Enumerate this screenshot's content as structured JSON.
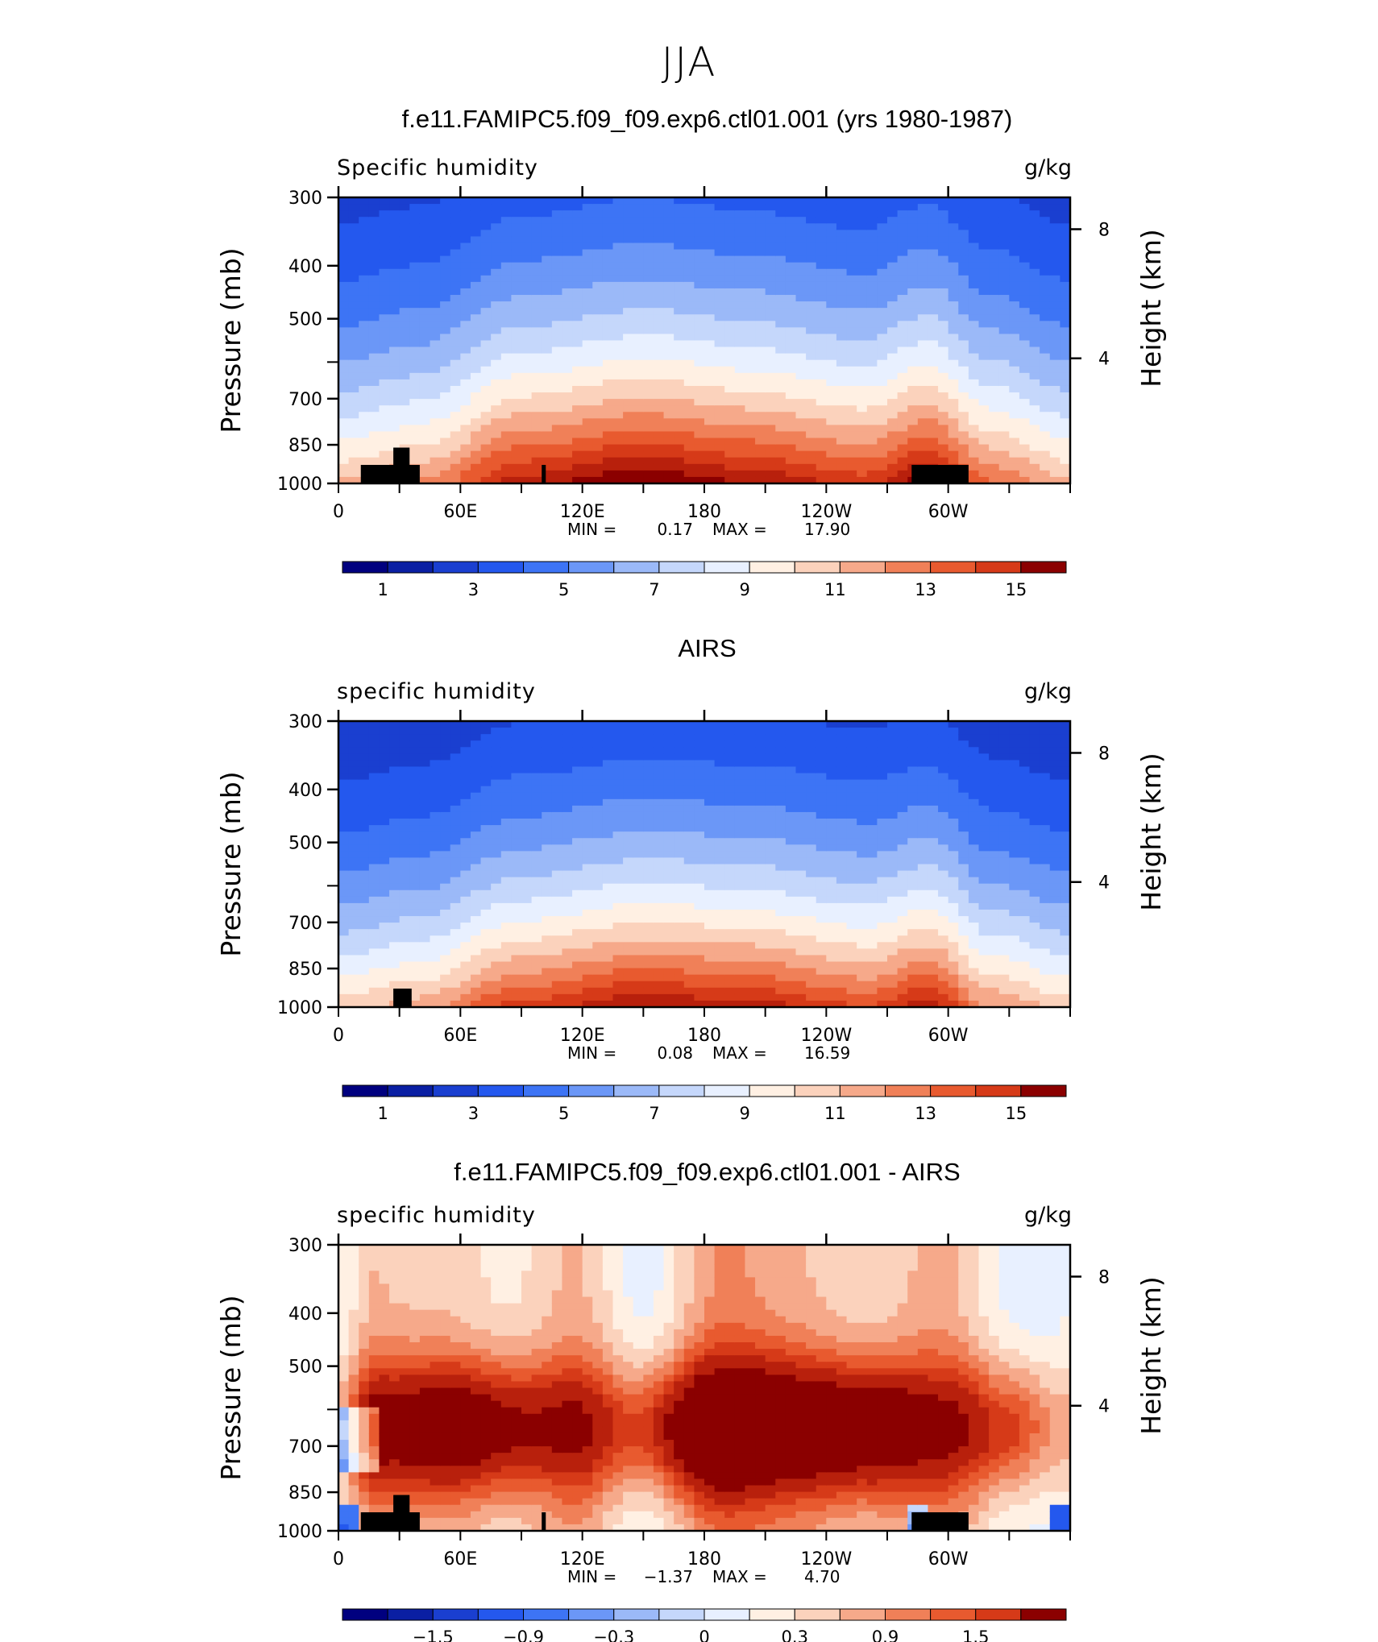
{
  "page_title": "JJA",
  "colors": {
    "humidity_scale": [
      "#00007f",
      "#0a1fa3",
      "#1a3fd0",
      "#2458ee",
      "#3d74f5",
      "#6b97f7",
      "#9bb9f8",
      "#c5d7fb",
      "#e8f0ff",
      "#fff0e3",
      "#fbd2bc",
      "#f6a98a",
      "#f08058",
      "#e85a2f",
      "#d63a18",
      "#b8200c",
      "#8b0000"
    ],
    "difference_scale": [
      "#00007f",
      "#0a1fa3",
      "#1a3fd0",
      "#2458ee",
      "#3d74f5",
      "#6b97f7",
      "#9bb9f8",
      "#c5d7fb",
      "#e8f0ff",
      "#fff0e3",
      "#fbd2bc",
      "#f6a98a",
      "#f08058",
      "#e85a2f",
      "#d63a18",
      "#b8200c",
      "#8b0000"
    ],
    "terrain": "#000000"
  },
  "chart_data": [
    {
      "type": "contour",
      "title": "f.e11.FAMIPC5.f09_f09.exp6.ctl01.001 (yrs 1980-1987)",
      "field_label": "Specific humidity",
      "units": "g/kg",
      "ylabel_left": "Pressure (mb)",
      "ylabel_right": "Height (km)",
      "y_ticks": [
        "300",
        "400",
        "500",
        "700",
        "850",
        "1000"
      ],
      "y_tick_values": [
        300,
        400,
        500,
        700,
        850,
        1000
      ],
      "right_ticks": [
        "8",
        "4"
      ],
      "right_tick_values": [
        8,
        4
      ],
      "x_ticks": [
        "0",
        "60E",
        "120E",
        "180",
        "120W",
        "60W"
      ],
      "x_tick_values": [
        0,
        60,
        120,
        180,
        240,
        300
      ],
      "xlim": [
        0,
        360
      ],
      "ylim": [
        1000,
        300
      ],
      "stats": {
        "min_label": "MIN =",
        "min": "0.17",
        "max_label": "MAX =",
        "max": "17.90"
      },
      "colorbar_labels": [
        "1",
        "3",
        "5",
        "7",
        "9",
        "11",
        "13",
        "15"
      ],
      "colorbar_levels": [
        1,
        3,
        5,
        7,
        9,
        11,
        13,
        15
      ],
      "field": "model"
    },
    {
      "type": "contour",
      "title": "AIRS",
      "field_label": "specific humidity",
      "units": "g/kg",
      "ylabel_left": "Pressure (mb)",
      "ylabel_right": "Height (km)",
      "y_ticks": [
        "300",
        "400",
        "500",
        "700",
        "850",
        "1000"
      ],
      "y_tick_values": [
        300,
        400,
        500,
        700,
        850,
        1000
      ],
      "right_ticks": [
        "8",
        "4"
      ],
      "right_tick_values": [
        8,
        4
      ],
      "x_ticks": [
        "0",
        "60E",
        "120E",
        "180",
        "120W",
        "60W"
      ],
      "x_tick_values": [
        0,
        60,
        120,
        180,
        240,
        300
      ],
      "xlim": [
        0,
        360
      ],
      "ylim": [
        1000,
        300
      ],
      "stats": {
        "min_label": "MIN =",
        "min": "0.08",
        "max_label": "MAX =",
        "max": "16.59"
      },
      "colorbar_labels": [
        "1",
        "3",
        "5",
        "7",
        "9",
        "11",
        "13",
        "15"
      ],
      "colorbar_levels": [
        1,
        3,
        5,
        7,
        9,
        11,
        13,
        15
      ],
      "field": "obs"
    },
    {
      "type": "contour",
      "title": "f.e11.FAMIPC5.f09_f09.exp6.ctl01.001 - AIRS",
      "field_label": "specific humidity",
      "units": "g/kg",
      "ylabel_left": "Pressure (mb)",
      "ylabel_right": "Height (km)",
      "y_ticks": [
        "300",
        "400",
        "500",
        "700",
        "850",
        "1000"
      ],
      "y_tick_values": [
        300,
        400,
        500,
        700,
        850,
        1000
      ],
      "right_ticks": [
        "8",
        "4"
      ],
      "right_tick_values": [
        8,
        4
      ],
      "x_ticks": [
        "0",
        "60E",
        "120E",
        "180",
        "120W",
        "60W"
      ],
      "x_tick_values": [
        0,
        60,
        120,
        180,
        240,
        300
      ],
      "xlim": [
        0,
        360
      ],
      "ylim": [
        1000,
        300
      ],
      "stats": {
        "min_label": "MIN =",
        "min": "−1.37",
        "max_label": "MAX =",
        "max": "4.70"
      },
      "colorbar_labels": [
        "−1.5",
        "−0.9",
        "−0.3",
        "0",
        "0.3",
        "0.9",
        "1.5"
      ],
      "colorbar_levels": [
        -1.5,
        -0.9,
        -0.3,
        0,
        0.3,
        0.9,
        1.5
      ],
      "field": "diff"
    }
  ]
}
